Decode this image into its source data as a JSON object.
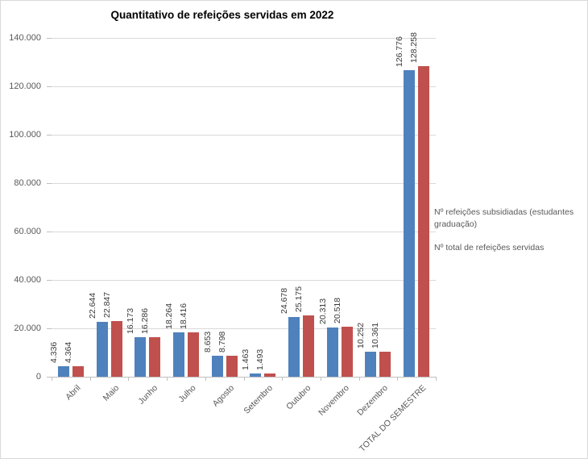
{
  "chart_data": {
    "type": "bar",
    "title": "Quantitativo de refeições servidas em 2022",
    "categories": [
      "Abril",
      "Maio",
      "Junho",
      "Julho",
      "Agosto",
      "Setembro",
      "Outubro",
      "Novembro",
      "Dezembro",
      "TOTAL DO SEMESTRE"
    ],
    "series": [
      {
        "name": "Nº refeições subsidiadas (estudantes graduação)",
        "color": "#4f81bd",
        "values": [
          4336,
          22644,
          16173,
          18264,
          8653,
          1463,
          24678,
          20313,
          10252,
          126776
        ],
        "labels": [
          "4.336",
          "22.644",
          "16.173",
          "18.264",
          "8.653",
          "1.463",
          "24.678",
          "20.313",
          "10.252",
          "126.776"
        ]
      },
      {
        "name": "Nº total de refeições servidas",
        "color": "#c0504d",
        "values": [
          4364,
          22847,
          16286,
          18416,
          8798,
          1493,
          25175,
          20518,
          10361,
          128258
        ],
        "labels": [
          "4.364",
          "22.847",
          "16.286",
          "18.416",
          "8.798",
          "1.493",
          "25.175",
          "20.518",
          "10.361",
          "128.258"
        ]
      }
    ],
    "y_axis": {
      "min": 0,
      "max": 140000,
      "step": 20000,
      "tick_labels": [
        "0",
        "20.000",
        "40.000",
        "60.000",
        "80.000",
        "100.000",
        "120.000",
        "140.000"
      ]
    },
    "grid": true,
    "legend_position": "right",
    "xlabel": "",
    "ylabel": ""
  },
  "colors": {
    "grid": "#d9d9d9",
    "axis": "#bfbfbf",
    "axis_text": "#595959",
    "data_label_text": "#3a3a3a",
    "background": "#ffffff",
    "border": "#d9d9d9"
  }
}
